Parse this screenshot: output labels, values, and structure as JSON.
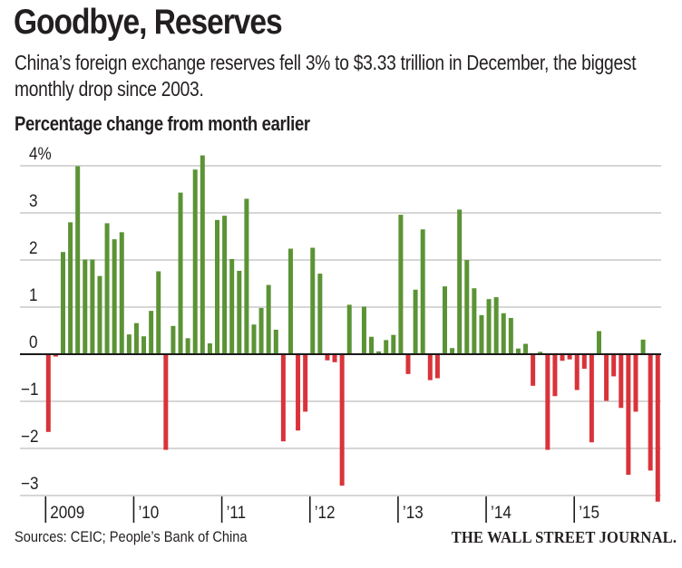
{
  "header": {
    "title": "Goodbye, Reserves",
    "subtitle": "China’s foreign exchange reserves fell 3% to $3.33 trillion in December, the biggest monthly drop since 2003."
  },
  "footer": {
    "source": "Sources: CEIC; People’s Bank of China",
    "brand": "THE WALL STREET JOURNAL."
  },
  "colors": {
    "positive": "#5b9335",
    "negative": "#d9333a",
    "grid": "#c8c8c8",
    "baseline": "#1a1a1a",
    "text": "#231f20"
  },
  "chart_data": {
    "type": "bar",
    "title": "Percentage change from month earlier",
    "xlabel": "",
    "ylabel": "",
    "ylim": [
      -3.2,
      4.3
    ],
    "grid": true,
    "yticks": [
      4,
      3,
      2,
      1,
      0,
      -1,
      -2,
      -3
    ],
    "ytick_labels": [
      "4%",
      "3",
      "2",
      "1",
      "0",
      "-1",
      "-2",
      "-3"
    ],
    "xtick_labels": [
      "2009",
      "’10",
      "’11",
      "’12",
      "’13",
      "’14",
      "’15"
    ],
    "start": "2009-01",
    "frequency": "monthly",
    "categories": [
      "2009-01",
      "2009-02",
      "2009-03",
      "2009-04",
      "2009-05",
      "2009-06",
      "2009-07",
      "2009-08",
      "2009-09",
      "2009-10",
      "2009-11",
      "2009-12",
      "2010-01",
      "2010-02",
      "2010-03",
      "2010-04",
      "2010-05",
      "2010-06",
      "2010-07",
      "2010-08",
      "2010-09",
      "2010-10",
      "2010-11",
      "2010-12",
      "2011-01",
      "2011-02",
      "2011-03",
      "2011-04",
      "2011-05",
      "2011-06",
      "2011-07",
      "2011-08",
      "2011-09",
      "2011-10",
      "2011-11",
      "2011-12",
      "2012-01",
      "2012-02",
      "2012-03",
      "2012-04",
      "2012-05",
      "2012-06",
      "2012-07",
      "2012-08",
      "2012-09",
      "2012-10",
      "2012-11",
      "2012-12",
      "2013-01",
      "2013-02",
      "2013-03",
      "2013-04",
      "2013-05",
      "2013-06",
      "2013-07",
      "2013-08",
      "2013-09",
      "2013-10",
      "2013-11",
      "2013-12",
      "2014-01",
      "2014-02",
      "2014-03",
      "2014-04",
      "2014-05",
      "2014-06",
      "2014-07",
      "2014-08",
      "2014-09",
      "2014-10",
      "2014-11",
      "2014-12",
      "2015-01",
      "2015-02",
      "2015-03",
      "2015-04",
      "2015-05",
      "2015-06",
      "2015-07",
      "2015-08",
      "2015-09",
      "2015-10",
      "2015-11",
      "2015-12"
    ],
    "values": [
      -1.65,
      -0.05,
      2.17,
      2.8,
      3.99,
      2.01,
      2.01,
      1.66,
      2.78,
      2.44,
      2.59,
      0.42,
      0.66,
      0.38,
      0.92,
      1.76,
      -2.03,
      0.6,
      3.43,
      0.34,
      3.92,
      4.22,
      0.23,
      2.85,
      2.94,
      2.02,
      1.77,
      3.3,
      0.63,
      0.98,
      1.47,
      0.52,
      -1.85,
      2.24,
      -1.62,
      -1.22,
      2.26,
      1.71,
      -0.13,
      -0.17,
      -2.79,
      1.05,
      0.0,
      1.01,
      0.37,
      0.06,
      0.3,
      0.41,
      2.96,
      -0.42,
      1.37,
      2.65,
      -0.55,
      -0.51,
      1.44,
      0.13,
      3.07,
      2.0,
      1.4,
      0.83,
      1.17,
      1.21,
      0.87,
      0.77,
      0.12,
      0.22,
      -0.67,
      0.05,
      -2.03,
      -0.89,
      -0.14,
      -0.11,
      -0.76,
      -0.31,
      -1.87,
      0.49,
      -0.99,
      -0.47,
      -1.14,
      -2.56,
      -1.22,
      0.31,
      -2.47,
      -3.13
    ]
  }
}
